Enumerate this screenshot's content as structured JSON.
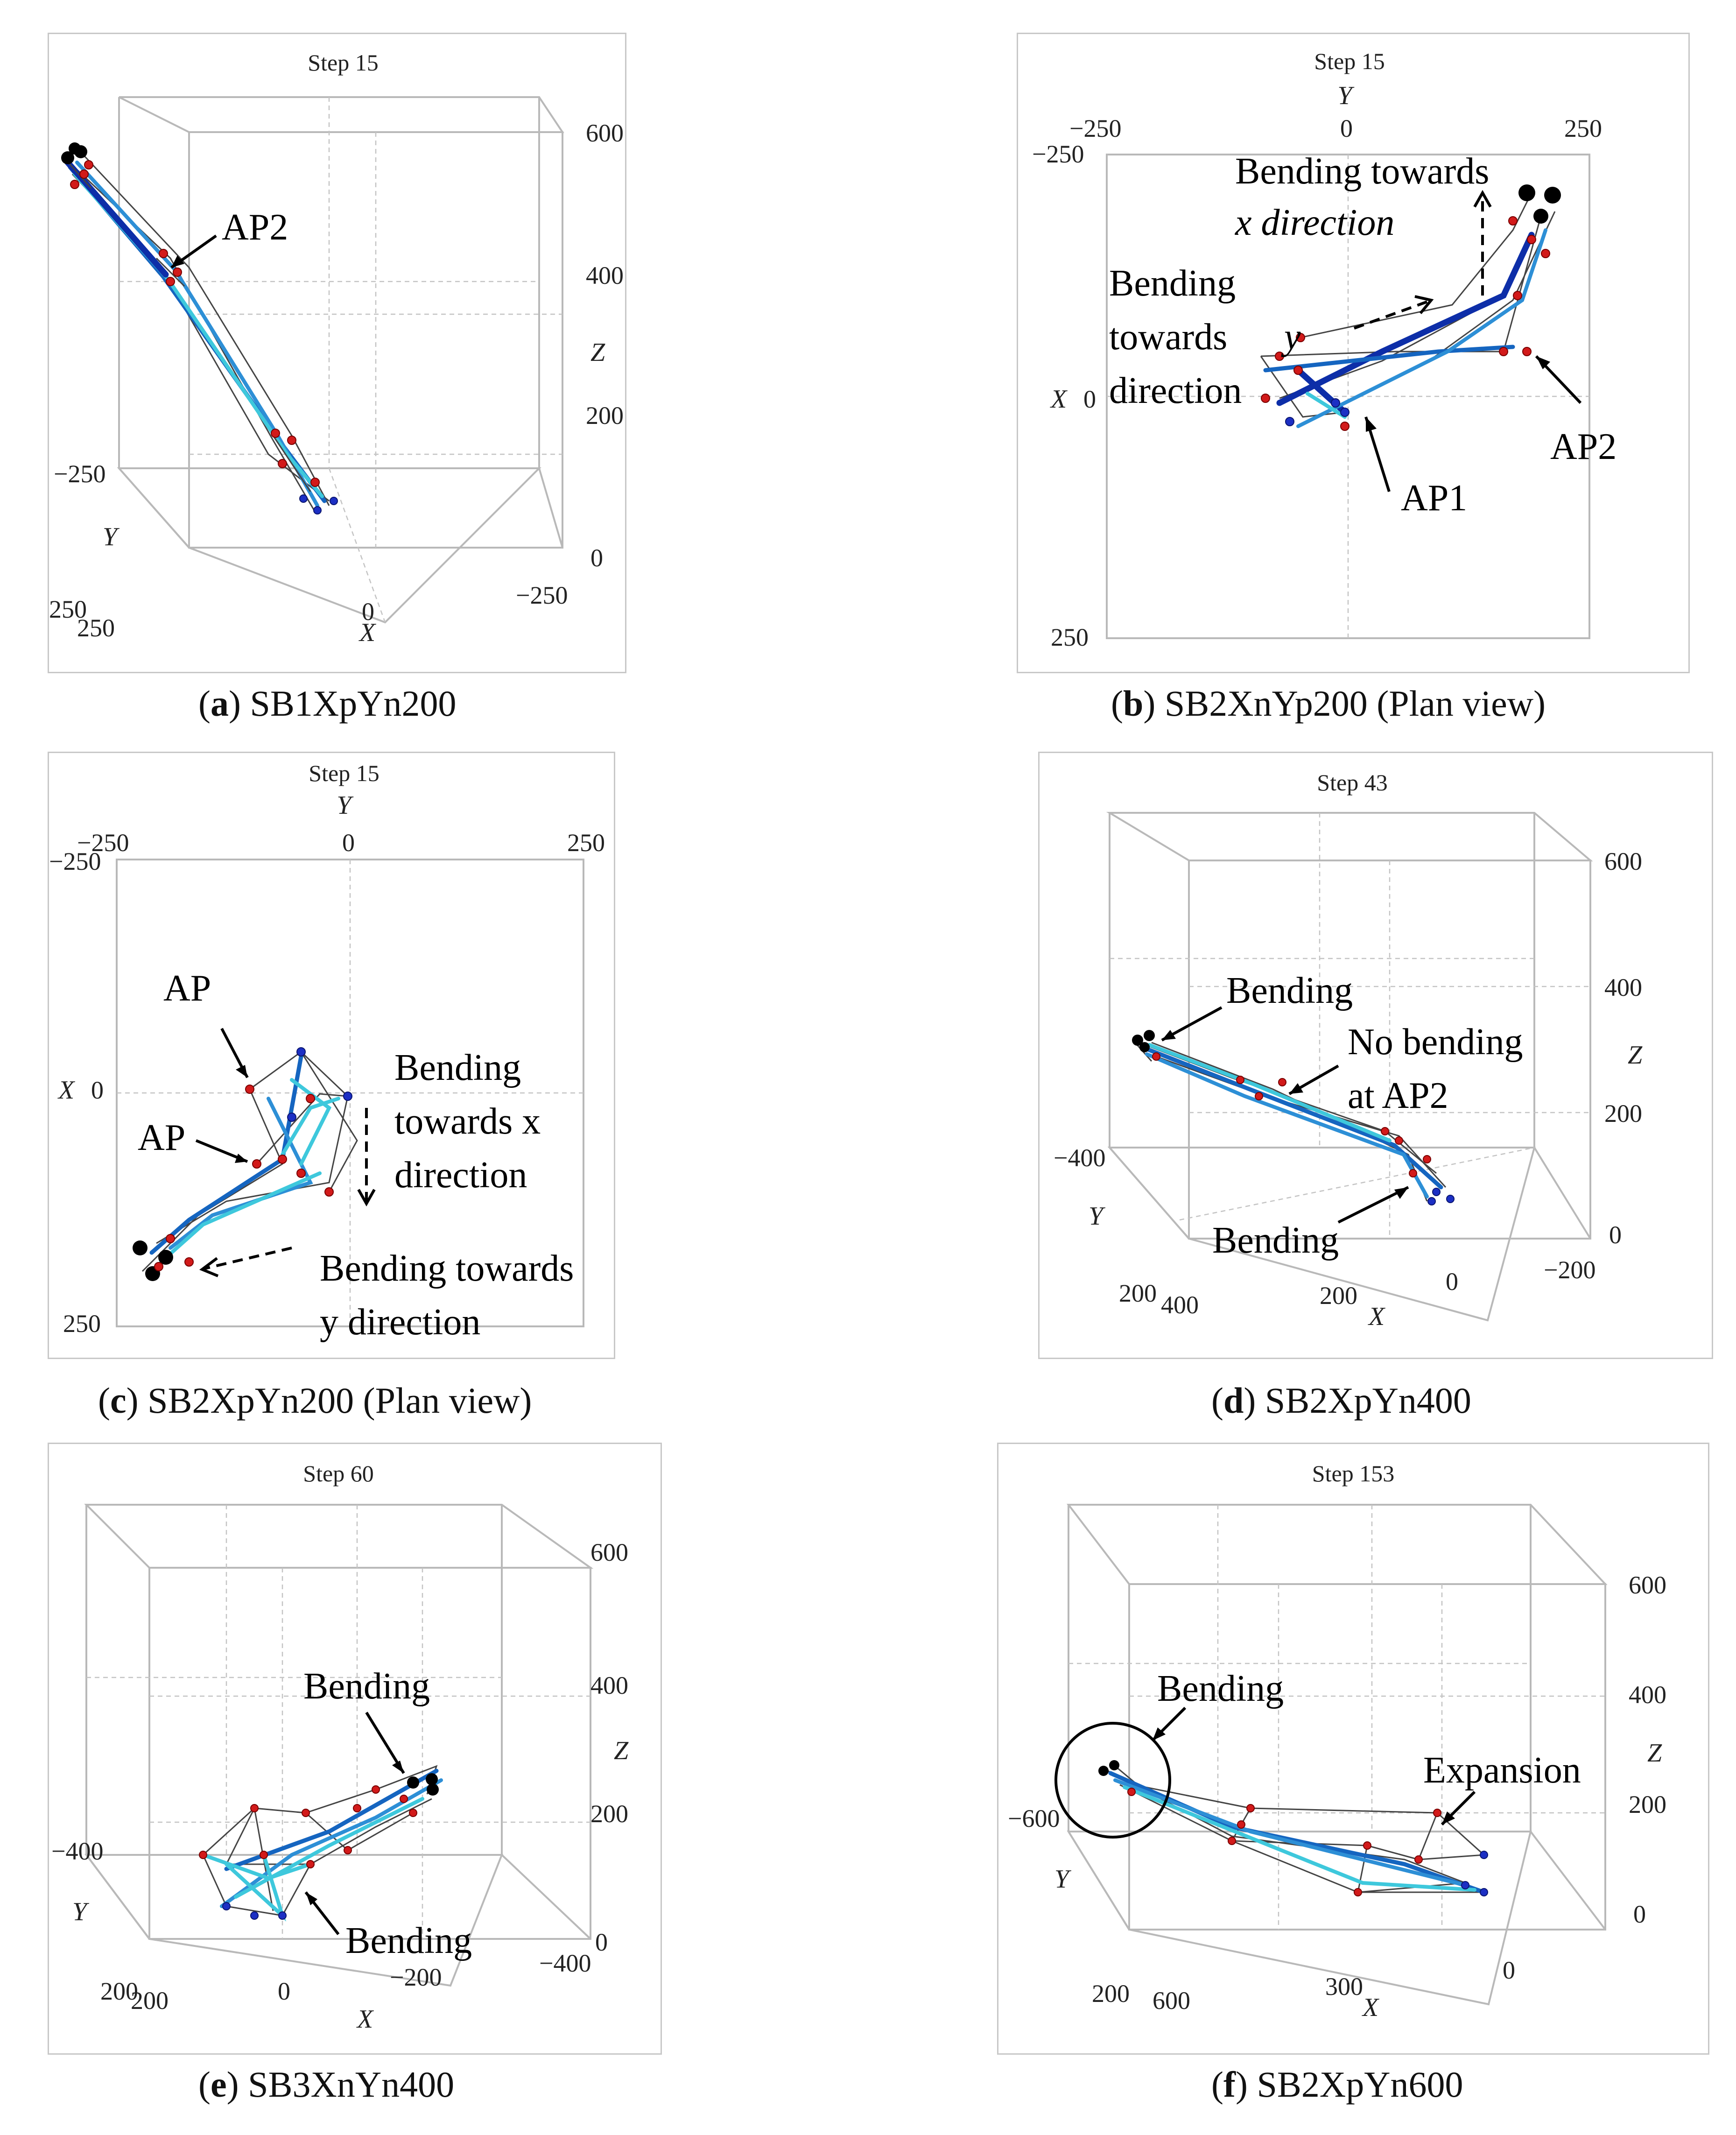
{
  "panels": [
    {
      "id": "a",
      "step": "Step 15",
      "caption_letter": "a",
      "caption_text": "SB1XpYn200",
      "ticks": {
        "z": [
          "600",
          "400",
          "200",
          "0"
        ],
        "y": [
          "−250",
          "250"
        ],
        "x": [
          "250",
          "0",
          "−250"
        ]
      },
      "axes": {
        "x": "X",
        "y": "Y",
        "z": "Z"
      },
      "annotations": [
        "AP2"
      ]
    },
    {
      "id": "b",
      "step": "Step 15",
      "caption_letter": "b",
      "caption_text": "SB2XnYp200 (Plan view)",
      "ticks": {
        "y": [
          "−250",
          "0",
          "250"
        ],
        "x": [
          "−250",
          "0",
          "250"
        ]
      },
      "axes": {
        "x": "X",
        "y": "Y"
      },
      "annotations": [
        "Bending towards",
        "x direction",
        "Bending",
        "towards",
        "y",
        "direction",
        "AP2",
        "AP1"
      ]
    },
    {
      "id": "c",
      "step": "Step 15",
      "caption_letter": "c",
      "caption_text": "SB2XpYn200 (Plan view)",
      "ticks": {
        "y": [
          "−250",
          "0",
          "250"
        ],
        "x": [
          "−250",
          "0",
          "250"
        ]
      },
      "axes": {
        "x": "X",
        "y": "Y"
      },
      "annotations": [
        "AP",
        "AP",
        "Bending",
        "towards x",
        "direction",
        "Bending towards",
        "y direction"
      ]
    },
    {
      "id": "d",
      "step": "Step 43",
      "caption_letter": "d",
      "caption_text": "SB2XpYn400",
      "ticks": {
        "z": [
          "600",
          "400",
          "200",
          "0"
        ],
        "y": [
          "−400",
          "200"
        ],
        "x": [
          "400",
          "200",
          "0",
          "−200"
        ]
      },
      "axes": {
        "x": "X",
        "y": "Y",
        "z": "Z"
      },
      "annotations": [
        "Bending",
        "No bending",
        "at AP2",
        "Bending"
      ]
    },
    {
      "id": "e",
      "step": "Step 60",
      "caption_letter": "e",
      "caption_text": "SB3XnYn400",
      "ticks": {
        "z": [
          "600",
          "400",
          "200",
          "0"
        ],
        "y": [
          "−400",
          "200"
        ],
        "x": [
          "200",
          "0",
          "−200",
          "−400"
        ]
      },
      "axes": {
        "x": "X",
        "y": "Y",
        "z": "Z"
      },
      "annotations": [
        "Bending",
        "Bending"
      ]
    },
    {
      "id": "f",
      "step": "Step 153",
      "caption_letter": "f",
      "caption_text": "SB2XpYn600",
      "ticks": {
        "z": [
          "600",
          "400",
          "200",
          "0"
        ],
        "y": [
          "−600",
          "200"
        ],
        "x": [
          "600",
          "300",
          "0"
        ]
      },
      "axes": {
        "x": "X",
        "y": "Y",
        "z": "Z"
      },
      "annotations": [
        "Bending",
        "Expansion"
      ]
    }
  ]
}
